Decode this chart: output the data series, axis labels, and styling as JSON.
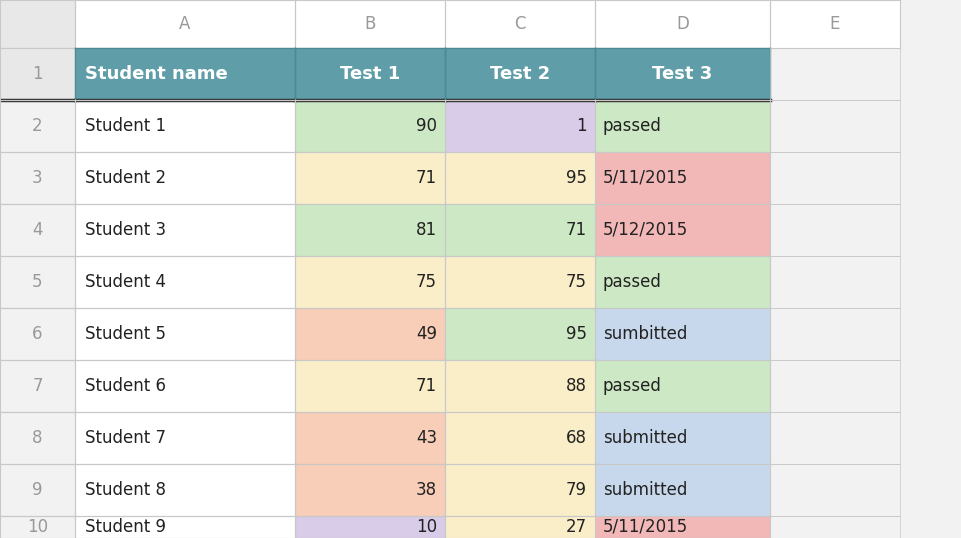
{
  "col_headers": [
    "",
    "A",
    "B",
    "C",
    "D",
    "E"
  ],
  "header_row": [
    "Student name",
    "Test 1",
    "Test 2",
    "Test 3"
  ],
  "data_rows": [
    [
      "Student 1",
      "90",
      "1",
      "passed"
    ],
    [
      "Student 2",
      "71",
      "95",
      "5/11/2015"
    ],
    [
      "Student 3",
      "81",
      "71",
      "5/12/2015"
    ],
    [
      "Student 4",
      "75",
      "75",
      "passed"
    ],
    [
      "Student 5",
      "49",
      "95",
      "sumbitted"
    ],
    [
      "Student 6",
      "71",
      "88",
      "passed"
    ],
    [
      "Student 7",
      "43",
      "68",
      "submitted"
    ],
    [
      "Student 8",
      "38",
      "79",
      "submitted"
    ],
    [
      "Student 9",
      "10",
      "27",
      "5/11/2015"
    ]
  ],
  "row_numbers": [
    "1",
    "2",
    "3",
    "4",
    "5",
    "6",
    "7",
    "8",
    "9",
    "10"
  ],
  "header_bg": "#5f9ea8",
  "header_text": "#ffffff",
  "col_header_text": "#999999",
  "row_num_text": "#999999",
  "figure_bg": "#f2f2f2",
  "cell_bg_white": "#ffffff",
  "grid_color": "#c8c8c8",
  "cell_colors": {
    "B2": "#cce8c4",
    "C2": "#d8cce8",
    "D2": "#cce8c4",
    "B3": "#faeec8",
    "C3": "#faeec8",
    "D3": "#f2b8b8",
    "B4": "#cce8c4",
    "C4": "#cce8c4",
    "D4": "#f2b8b8",
    "B5": "#faeec8",
    "C5": "#faeec8",
    "D5": "#cce8c4",
    "B6": "#f8ceb8",
    "C6": "#cce8c4",
    "D6": "#c8d8ec",
    "B7": "#faeec8",
    "C7": "#faeec8",
    "D7": "#cce8c4",
    "B8": "#f8ceb8",
    "C8": "#faeec8",
    "D8": "#c8d8ec",
    "B9": "#f8ceb8",
    "C9": "#faeec8",
    "D9": "#c8d8ec",
    "B10": "#d8cce8",
    "C10": "#faeec8",
    "D10": "#f2b8b8"
  },
  "figsize": [
    9.62,
    5.38
  ],
  "dpi": 100
}
